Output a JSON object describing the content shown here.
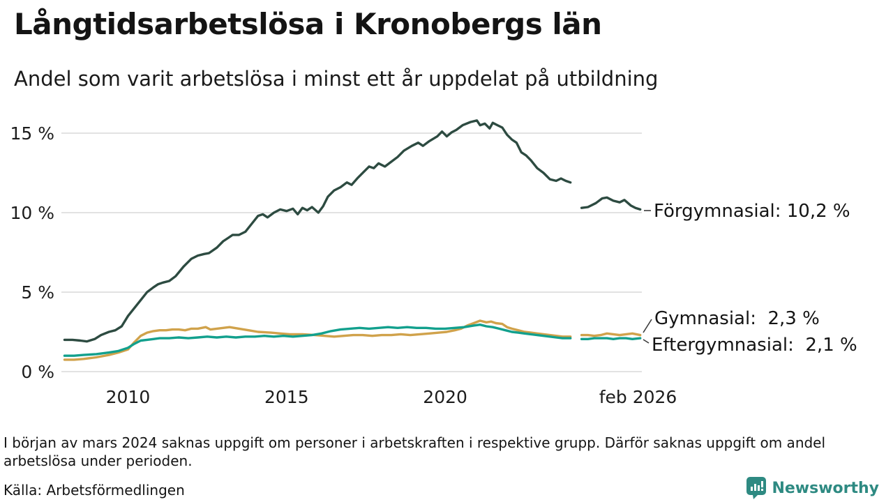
{
  "header": {
    "title": "Långtidsarbetslösa i Kronobergs län",
    "subtitle": "Andel som varit arbetslösa i minst ett år uppdelat på utbildning"
  },
  "footnote": {
    "text": "I början av mars 2024 saknas uppgift om personer i arbetskraften i respektive grupp. Därför saknas uppgift om andel arbetslösa under perioden."
  },
  "source": {
    "label": "Källa: Arbetsförmedlingen"
  },
  "branding": {
    "name": "Newsworthy",
    "color": "#2e8a82",
    "icon": "bar-chart-speech-bubble-icon"
  },
  "chart_data": {
    "type": "line",
    "title": "Långtidsarbetslösa i Kronobergs län",
    "subtitle": "Andel som varit arbetslösa i minst ett år uppdelat på utbildning",
    "unit": "%",
    "grid": "horizontal-only",
    "legend_position": "end-of-line-labels",
    "gap_note": "data missing around mars 2024",
    "x_axis": {
      "range": [
        2007.9,
        2026.2
      ],
      "ticks": [
        {
          "value": 2010,
          "label": "2010"
        },
        {
          "value": 2015,
          "label": "2015"
        },
        {
          "value": 2020,
          "label": "2020"
        },
        {
          "value": 2026.08,
          "label": "feb 2026"
        }
      ]
    },
    "y_axis": {
      "range": [
        0,
        16.5
      ],
      "ticks": [
        {
          "value": 0,
          "label": "0 %"
        },
        {
          "value": 5,
          "label": "5 %"
        },
        {
          "value": 10,
          "label": "10 %"
        },
        {
          "value": 15,
          "label": "15 %"
        }
      ]
    },
    "series": [
      {
        "id": "forgymnasial",
        "name": "Förgymnasial",
        "color": "#2d4b41",
        "latest_value": "10,2 %",
        "end_label": "Förgymnasial: 10,2 %",
        "segments": [
          [
            [
              2008.0,
              2.0
            ],
            [
              2008.25,
              2.0
            ],
            [
              2008.5,
              1.95
            ],
            [
              2008.7,
              1.9
            ],
            [
              2008.95,
              2.05
            ],
            [
              2009.15,
              2.3
            ],
            [
              2009.4,
              2.5
            ],
            [
              2009.6,
              2.6
            ],
            [
              2009.8,
              2.85
            ],
            [
              2010.0,
              3.5
            ],
            [
              2010.2,
              4.0
            ],
            [
              2010.4,
              4.5
            ],
            [
              2010.6,
              5.0
            ],
            [
              2010.8,
              5.3
            ],
            [
              2010.95,
              5.5
            ],
            [
              2011.1,
              5.6
            ],
            [
              2011.3,
              5.7
            ],
            [
              2011.5,
              6.0
            ],
            [
              2011.75,
              6.6
            ],
            [
              2012.0,
              7.1
            ],
            [
              2012.2,
              7.3
            ],
            [
              2012.4,
              7.4
            ],
            [
              2012.55,
              7.45
            ],
            [
              2012.8,
              7.8
            ],
            [
              2013.0,
              8.2
            ],
            [
              2013.15,
              8.4
            ],
            [
              2013.3,
              8.6
            ],
            [
              2013.5,
              8.6
            ],
            [
              2013.7,
              8.8
            ],
            [
              2013.9,
              9.3
            ],
            [
              2014.1,
              9.8
            ],
            [
              2014.25,
              9.9
            ],
            [
              2014.4,
              9.7
            ],
            [
              2014.6,
              10.0
            ],
            [
              2014.8,
              10.2
            ],
            [
              2015.0,
              10.1
            ],
            [
              2015.2,
              10.25
            ],
            [
              2015.35,
              9.9
            ],
            [
              2015.5,
              10.3
            ],
            [
              2015.65,
              10.15
            ],
            [
              2015.8,
              10.35
            ],
            [
              2016.0,
              10.0
            ],
            [
              2016.15,
              10.4
            ],
            [
              2016.3,
              11.0
            ],
            [
              2016.5,
              11.4
            ],
            [
              2016.7,
              11.6
            ],
            [
              2016.9,
              11.9
            ],
            [
              2017.05,
              11.75
            ],
            [
              2017.25,
              12.2
            ],
            [
              2017.45,
              12.6
            ],
            [
              2017.6,
              12.9
            ],
            [
              2017.75,
              12.8
            ],
            [
              2017.9,
              13.1
            ],
            [
              2018.1,
              12.9
            ],
            [
              2018.3,
              13.2
            ],
            [
              2018.5,
              13.5
            ],
            [
              2018.7,
              13.9
            ],
            [
              2018.95,
              14.2
            ],
            [
              2019.15,
              14.4
            ],
            [
              2019.3,
              14.2
            ],
            [
              2019.5,
              14.5
            ],
            [
              2019.75,
              14.8
            ],
            [
              2019.9,
              15.1
            ],
            [
              2020.05,
              14.8
            ],
            [
              2020.2,
              15.05
            ],
            [
              2020.35,
              15.2
            ],
            [
              2020.55,
              15.5
            ],
            [
              2020.8,
              15.7
            ],
            [
              2021.0,
              15.8
            ],
            [
              2021.1,
              15.5
            ],
            [
              2021.25,
              15.6
            ],
            [
              2021.4,
              15.3
            ],
            [
              2021.5,
              15.65
            ],
            [
              2021.65,
              15.5
            ],
            [
              2021.8,
              15.35
            ],
            [
              2021.95,
              14.9
            ],
            [
              2022.1,
              14.6
            ],
            [
              2022.25,
              14.4
            ],
            [
              2022.4,
              13.8
            ],
            [
              2022.55,
              13.6
            ],
            [
              2022.7,
              13.3
            ],
            [
              2022.9,
              12.8
            ],
            [
              2023.1,
              12.5
            ],
            [
              2023.3,
              12.1
            ],
            [
              2023.5,
              12.0
            ],
            [
              2023.65,
              12.15
            ],
            [
              2023.8,
              12.0
            ],
            [
              2023.95,
              11.9
            ]
          ],
          [
            [
              2024.3,
              10.3
            ],
            [
              2024.5,
              10.35
            ],
            [
              2024.75,
              10.6
            ],
            [
              2024.95,
              10.9
            ],
            [
              2025.1,
              10.95
            ],
            [
              2025.3,
              10.75
            ],
            [
              2025.5,
              10.65
            ],
            [
              2025.65,
              10.8
            ],
            [
              2025.85,
              10.45
            ],
            [
              2026.0,
              10.3
            ],
            [
              2026.15,
              10.2
            ]
          ]
        ]
      },
      {
        "id": "gymnasial",
        "name": "Gymnasial",
        "color": "#d0a24b",
        "latest_value": "2,3 %",
        "end_label": "Gymnasial:  2,3 %",
        "segments": [
          [
            [
              2008.0,
              0.75
            ],
            [
              2008.3,
              0.75
            ],
            [
              2008.6,
              0.8
            ],
            [
              2009.0,
              0.9
            ],
            [
              2009.4,
              1.05
            ],
            [
              2009.7,
              1.2
            ],
            [
              2010.0,
              1.4
            ],
            [
              2010.2,
              1.85
            ],
            [
              2010.4,
              2.25
            ],
            [
              2010.6,
              2.45
            ],
            [
              2010.8,
              2.55
            ],
            [
              2011.0,
              2.6
            ],
            [
              2011.2,
              2.6
            ],
            [
              2011.4,
              2.65
            ],
            [
              2011.6,
              2.65
            ],
            [
              2011.8,
              2.6
            ],
            [
              2012.0,
              2.7
            ],
            [
              2012.2,
              2.7
            ],
            [
              2012.45,
              2.8
            ],
            [
              2012.6,
              2.65
            ],
            [
              2012.8,
              2.7
            ],
            [
              2013.0,
              2.75
            ],
            [
              2013.2,
              2.8
            ],
            [
              2013.5,
              2.7
            ],
            [
              2013.8,
              2.6
            ],
            [
              2014.1,
              2.5
            ],
            [
              2014.5,
              2.45
            ],
            [
              2014.8,
              2.4
            ],
            [
              2015.1,
              2.35
            ],
            [
              2015.5,
              2.35
            ],
            [
              2015.9,
              2.3
            ],
            [
              2016.2,
              2.25
            ],
            [
              2016.5,
              2.2
            ],
            [
              2016.8,
              2.25
            ],
            [
              2017.1,
              2.3
            ],
            [
              2017.4,
              2.3
            ],
            [
              2017.7,
              2.25
            ],
            [
              2018.0,
              2.3
            ],
            [
              2018.3,
              2.3
            ],
            [
              2018.6,
              2.35
            ],
            [
              2018.9,
              2.3
            ],
            [
              2019.2,
              2.35
            ],
            [
              2019.5,
              2.4
            ],
            [
              2019.8,
              2.45
            ],
            [
              2020.05,
              2.5
            ],
            [
              2020.3,
              2.6
            ],
            [
              2020.5,
              2.7
            ],
            [
              2020.7,
              2.9
            ],
            [
              2020.9,
              3.05
            ],
            [
              2021.1,
              3.2
            ],
            [
              2021.3,
              3.1
            ],
            [
              2021.45,
              3.15
            ],
            [
              2021.6,
              3.05
            ],
            [
              2021.8,
              3.0
            ],
            [
              2021.95,
              2.8
            ],
            [
              2022.1,
              2.7
            ],
            [
              2022.3,
              2.6
            ],
            [
              2022.5,
              2.5
            ],
            [
              2022.7,
              2.45
            ],
            [
              2022.9,
              2.4
            ],
            [
              2023.1,
              2.35
            ],
            [
              2023.3,
              2.3
            ],
            [
              2023.5,
              2.25
            ],
            [
              2023.7,
              2.2
            ],
            [
              2023.95,
              2.2
            ]
          ],
          [
            [
              2024.3,
              2.3
            ],
            [
              2024.5,
              2.3
            ],
            [
              2024.7,
              2.25
            ],
            [
              2024.9,
              2.3
            ],
            [
              2025.1,
              2.4
            ],
            [
              2025.3,
              2.35
            ],
            [
              2025.5,
              2.3
            ],
            [
              2025.7,
              2.35
            ],
            [
              2025.9,
              2.4
            ],
            [
              2026.15,
              2.3
            ]
          ]
        ]
      },
      {
        "id": "eftergymnasial",
        "name": "Eftergymnasial",
        "color": "#12a08d",
        "latest_value": "2,1 %",
        "end_label": "Eftergymnasial:  2,1 %",
        "segments": [
          [
            [
              2008.0,
              1.0
            ],
            [
              2008.3,
              1.0
            ],
            [
              2008.6,
              1.05
            ],
            [
              2009.0,
              1.1
            ],
            [
              2009.4,
              1.2
            ],
            [
              2009.7,
              1.3
            ],
            [
              2010.0,
              1.5
            ],
            [
              2010.2,
              1.75
            ],
            [
              2010.4,
              1.95
            ],
            [
              2010.6,
              2.0
            ],
            [
              2010.8,
              2.05
            ],
            [
              2011.0,
              2.1
            ],
            [
              2011.3,
              2.1
            ],
            [
              2011.6,
              2.15
            ],
            [
              2011.9,
              2.1
            ],
            [
              2012.2,
              2.15
            ],
            [
              2012.5,
              2.2
            ],
            [
              2012.8,
              2.15
            ],
            [
              2013.1,
              2.2
            ],
            [
              2013.4,
              2.15
            ],
            [
              2013.7,
              2.2
            ],
            [
              2014.0,
              2.2
            ],
            [
              2014.3,
              2.25
            ],
            [
              2014.6,
              2.2
            ],
            [
              2014.9,
              2.25
            ],
            [
              2015.2,
              2.2
            ],
            [
              2015.5,
              2.25
            ],
            [
              2015.8,
              2.3
            ],
            [
              2016.1,
              2.4
            ],
            [
              2016.4,
              2.55
            ],
            [
              2016.7,
              2.65
            ],
            [
              2017.0,
              2.7
            ],
            [
              2017.3,
              2.75
            ],
            [
              2017.6,
              2.7
            ],
            [
              2017.9,
              2.75
            ],
            [
              2018.2,
              2.8
            ],
            [
              2018.5,
              2.75
            ],
            [
              2018.8,
              2.8
            ],
            [
              2019.1,
              2.75
            ],
            [
              2019.4,
              2.75
            ],
            [
              2019.7,
              2.7
            ],
            [
              2020.0,
              2.7
            ],
            [
              2020.3,
              2.75
            ],
            [
              2020.6,
              2.8
            ],
            [
              2020.9,
              2.9
            ],
            [
              2021.1,
              2.95
            ],
            [
              2021.3,
              2.85
            ],
            [
              2021.5,
              2.8
            ],
            [
              2021.7,
              2.7
            ],
            [
              2021.9,
              2.6
            ],
            [
              2022.1,
              2.5
            ],
            [
              2022.3,
              2.45
            ],
            [
              2022.5,
              2.4
            ],
            [
              2022.7,
              2.35
            ],
            [
              2022.9,
              2.3
            ],
            [
              2023.1,
              2.25
            ],
            [
              2023.3,
              2.2
            ],
            [
              2023.5,
              2.15
            ],
            [
              2023.7,
              2.1
            ],
            [
              2023.95,
              2.1
            ]
          ],
          [
            [
              2024.3,
              2.05
            ],
            [
              2024.5,
              2.05
            ],
            [
              2024.7,
              2.1
            ],
            [
              2024.9,
              2.1
            ],
            [
              2025.1,
              2.1
            ],
            [
              2025.3,
              2.05
            ],
            [
              2025.5,
              2.1
            ],
            [
              2025.7,
              2.1
            ],
            [
              2025.9,
              2.05
            ],
            [
              2026.15,
              2.1
            ]
          ]
        ]
      }
    ]
  }
}
